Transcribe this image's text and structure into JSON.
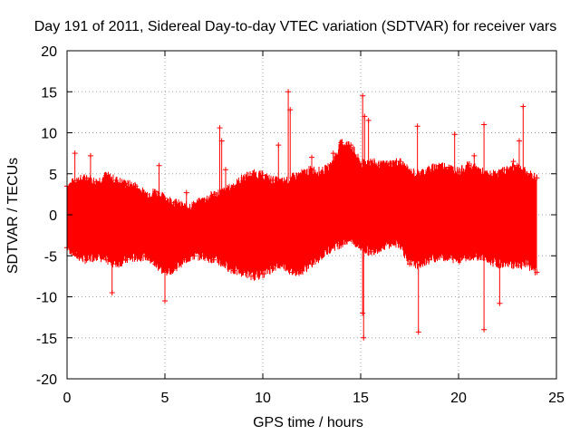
{
  "chart_data": {
    "type": "scatter",
    "title": "Day 191 of 2011, Sidereal Day-to-day VTEC variation (SDTVAR) for receiver vars",
    "xlabel": "GPS time / hours",
    "ylabel": "SDTVAR / TECUs",
    "xlim": [
      0,
      25
    ],
    "ylim": [
      -20,
      20
    ],
    "x_ticks": [
      "0",
      "5",
      "10",
      "15",
      "20",
      "25"
    ],
    "y_ticks": [
      "-20",
      "-15",
      "-10",
      "-5",
      "0",
      "5",
      "10",
      "15",
      "20"
    ],
    "grid": true,
    "series": [
      {
        "name": "SDTVAR",
        "color": "#ff0000",
        "marker": "plus",
        "note": "dense error-bar band; envelope and notable outliers listed",
        "envelope": {
          "x": [
            0.0,
            0.5,
            1.0,
            1.5,
            2.0,
            2.5,
            3.0,
            3.5,
            4.0,
            4.5,
            5.0,
            5.5,
            6.0,
            6.5,
            7.0,
            7.5,
            8.0,
            8.5,
            9.0,
            9.5,
            10.0,
            10.5,
            11.0,
            11.5,
            12.0,
            12.5,
            13.0,
            13.5,
            14.0,
            14.5,
            15.0,
            15.5,
            16.0,
            16.5,
            17.0,
            17.5,
            18.0,
            18.5,
            19.0,
            19.5,
            20.0,
            20.5,
            21.0,
            21.5,
            22.0,
            22.5,
            23.0,
            23.5,
            24.0
          ],
          "upper": [
            3.5,
            4.2,
            4.5,
            4.0,
            4.8,
            4.2,
            3.8,
            3.5,
            2.5,
            2.8,
            2.0,
            1.5,
            1.0,
            1.2,
            1.8,
            2.5,
            2.8,
            3.5,
            4.5,
            5.0,
            4.8,
            4.2,
            4.0,
            4.5,
            5.0,
            5.5,
            5.2,
            6.0,
            8.8,
            8.5,
            6.2,
            6.5,
            6.0,
            6.2,
            6.5,
            5.2,
            5.0,
            5.5,
            6.0,
            5.8,
            5.2,
            6.0,
            5.5,
            4.8,
            5.0,
            5.5,
            6.0,
            5.0,
            4.5
          ],
          "lower": [
            -4.0,
            -5.0,
            -5.5,
            -5.0,
            -5.5,
            -6.0,
            -5.5,
            -5.2,
            -5.0,
            -6.0,
            -7.0,
            -6.5,
            -5.5,
            -5.0,
            -5.0,
            -5.5,
            -6.0,
            -6.8,
            -7.0,
            -7.5,
            -7.2,
            -6.5,
            -6.0,
            -7.0,
            -6.8,
            -6.0,
            -5.0,
            -4.0,
            -3.5,
            -3.0,
            -4.0,
            -4.5,
            -4.0,
            -3.5,
            -3.5,
            -6.0,
            -6.0,
            -5.5,
            -5.0,
            -5.2,
            -5.5,
            -5.0,
            -5.0,
            -5.5,
            -6.0,
            -5.8,
            -6.2,
            -6.0,
            -7.0
          ]
        },
        "outliers": [
          {
            "x": 7.8,
            "y": 10.6
          },
          {
            "x": 7.9,
            "y": 9.0
          },
          {
            "x": 8.1,
            "y": 5.5
          },
          {
            "x": 11.3,
            "y": 15.0
          },
          {
            "x": 11.4,
            "y": 12.8
          },
          {
            "x": 10.8,
            "y": 8.5
          },
          {
            "x": 15.1,
            "y": 14.5
          },
          {
            "x": 15.2,
            "y": 12.0
          },
          {
            "x": 15.4,
            "y": 11.5
          },
          {
            "x": 15.15,
            "y": -15.0
          },
          {
            "x": 15.1,
            "y": -12.0
          },
          {
            "x": 17.9,
            "y": 10.8
          },
          {
            "x": 17.95,
            "y": -14.3
          },
          {
            "x": 19.8,
            "y": 9.8
          },
          {
            "x": 21.3,
            "y": 11.0
          },
          {
            "x": 21.3,
            "y": -14.0
          },
          {
            "x": 23.3,
            "y": 13.2
          },
          {
            "x": 4.7,
            "y": 6.0
          },
          {
            "x": 0.4,
            "y": 7.5
          },
          {
            "x": 5.0,
            "y": -10.5
          },
          {
            "x": 2.3,
            "y": -9.5
          },
          {
            "x": 22.1,
            "y": -10.8
          },
          {
            "x": 23.1,
            "y": 9.0
          },
          {
            "x": 6.1,
            "y": 2.7
          },
          {
            "x": 1.2,
            "y": 7.2
          },
          {
            "x": 12.5,
            "y": 7.0
          },
          {
            "x": 13.6,
            "y": 7.5
          },
          {
            "x": 16.2,
            "y": 6.2
          },
          {
            "x": 20.8,
            "y": 7.2
          },
          {
            "x": 22.8,
            "y": 6.5
          }
        ]
      }
    ]
  }
}
